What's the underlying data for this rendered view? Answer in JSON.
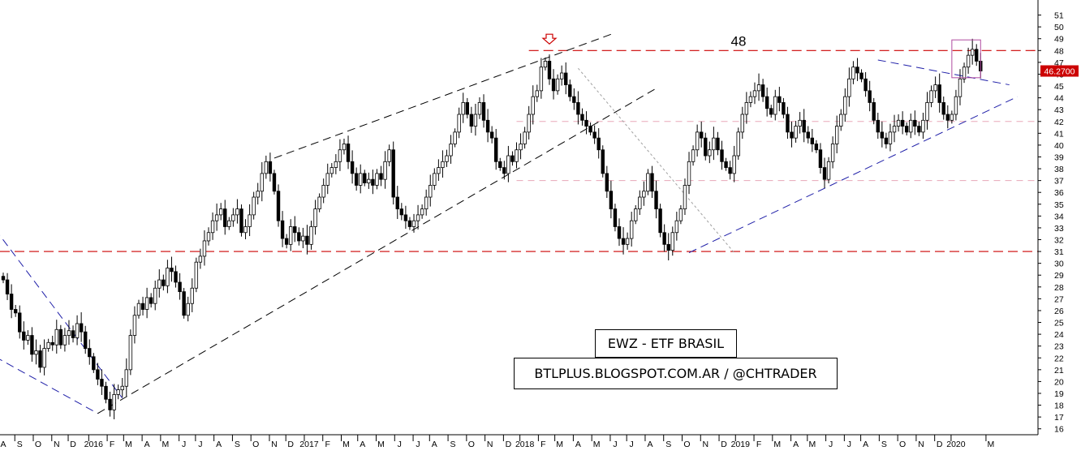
{
  "chart_data": {
    "type": "candlestick",
    "title": "EWZ - ETF BRASIL",
    "credit": "BTLPLUS.BLOGSPOT.COM.AR / @CHTRADER",
    "annotation_level_label": "48",
    "last_price_label": "46.2700",
    "colors": {
      "up_body": "#ffffff",
      "down_body": "#000000",
      "resistance": "#cc0000",
      "channel": "#000000",
      "trend_blue": "#1f1fa8",
      "pink_line": "#e8a8b8",
      "highlight_box": "#b04aa0",
      "price_tag": "#cc0000"
    },
    "ylim": [
      15.5,
      52
    ],
    "y_ticks": [
      16,
      17,
      18,
      19,
      20,
      21,
      22,
      23,
      24,
      25,
      26,
      27,
      28,
      29,
      30,
      31,
      32,
      33,
      34,
      35,
      36,
      37,
      38,
      39,
      40,
      41,
      42,
      43,
      44,
      45,
      46,
      47,
      48,
      49,
      50,
      51
    ],
    "x_ticks": [
      {
        "label": "A",
        "i": 0
      },
      {
        "label": "S",
        "i": 4
      },
      {
        "label": "O",
        "i": 8.5
      },
      {
        "label": "N",
        "i": 13
      },
      {
        "label": "D",
        "i": 17
      },
      {
        "label": "2016",
        "i": 22
      },
      {
        "label": "F",
        "i": 26.5
      },
      {
        "label": "M",
        "i": 30.5
      },
      {
        "label": "A",
        "i": 35
      },
      {
        "label": "M",
        "i": 39.5
      },
      {
        "label": "J",
        "i": 44
      },
      {
        "label": "J",
        "i": 48
      },
      {
        "label": "A",
        "i": 52.5
      },
      {
        "label": "S",
        "i": 57
      },
      {
        "label": "O",
        "i": 61.5
      },
      {
        "label": "N",
        "i": 66
      },
      {
        "label": "D",
        "i": 70
      },
      {
        "label": "2017",
        "i": 74.5
      },
      {
        "label": "F",
        "i": 79
      },
      {
        "label": "M",
        "i": 83.5
      },
      {
        "label": "A",
        "i": 87.5
      },
      {
        "label": "M",
        "i": 92
      },
      {
        "label": "J",
        "i": 96.5
      },
      {
        "label": "J",
        "i": 101
      },
      {
        "label": "A",
        "i": 105
      },
      {
        "label": "S",
        "i": 109.5
      },
      {
        "label": "O",
        "i": 114
      },
      {
        "label": "N",
        "i": 118.5
      },
      {
        "label": "D",
        "i": 123
      },
      {
        "label": "2018",
        "i": 127
      },
      {
        "label": "F",
        "i": 131.5
      },
      {
        "label": "M",
        "i": 135.5
      },
      {
        "label": "A",
        "i": 140
      },
      {
        "label": "M",
        "i": 144.5
      },
      {
        "label": "J",
        "i": 149
      },
      {
        "label": "J",
        "i": 153
      },
      {
        "label": "A",
        "i": 157.5
      },
      {
        "label": "S",
        "i": 162
      },
      {
        "label": "O",
        "i": 166.5
      },
      {
        "label": "N",
        "i": 171
      },
      {
        "label": "D",
        "i": 175.5
      },
      {
        "label": "2019",
        "i": 179.5
      },
      {
        "label": "F",
        "i": 184
      },
      {
        "label": "M",
        "i": 188.5
      },
      {
        "label": "A",
        "i": 193
      },
      {
        "label": "M",
        "i": 197
      },
      {
        "label": "J",
        "i": 201.5
      },
      {
        "label": "J",
        "i": 206
      },
      {
        "label": "A",
        "i": 210
      },
      {
        "label": "S",
        "i": 214.5
      },
      {
        "label": "O",
        "i": 219
      },
      {
        "label": "N",
        "i": 223.5
      },
      {
        "label": "D",
        "i": 228
      },
      {
        "label": "2020",
        "i": 232
      },
      {
        "label": "M",
        "i": 240.5
      }
    ],
    "closes": [
      28.6,
      27.4,
      26.1,
      25.8,
      24.2,
      23.5,
      23.9,
      22.3,
      22.6,
      21.2,
      22.8,
      23.3,
      23.1,
      24.4,
      23.1,
      23.9,
      24.3,
      23.7,
      24.9,
      24.2,
      22.8,
      22.1,
      21.0,
      20.2,
      19.6,
      18.5,
      17.6,
      18.9,
      19.3,
      19.6,
      21.0,
      23.9,
      25.6,
      26.6,
      26.1,
      27.1,
      26.6,
      27.9,
      28.6,
      28.1,
      29.6,
      29.3,
      28.4,
      27.6,
      25.6,
      26.6,
      27.9,
      30.1,
      30.6,
      31.9,
      32.6,
      33.6,
      34.1,
      34.6,
      33.1,
      33.6,
      34.1,
      34.6,
      32.6,
      33.1,
      34.1,
      35.6,
      36.1,
      37.6,
      38.6,
      37.6,
      36.1,
      33.6,
      32.1,
      31.6,
      33.1,
      32.6,
      31.9,
      32.3,
      31.6,
      33.1,
      34.6,
      35.6,
      36.6,
      37.6,
      38.1,
      38.6,
      39.6,
      40.1,
      38.6,
      37.6,
      36.6,
      37.6,
      36.8,
      37.1,
      36.6,
      37.6,
      37.1,
      38.6,
      39.6,
      35.6,
      34.6,
      34.1,
      33.6,
      33.1,
      33.6,
      34.1,
      34.6,
      35.6,
      36.6,
      37.6,
      38.1,
      38.6,
      39.1,
      40.1,
      41.1,
      42.6,
      43.6,
      42.6,
      41.6,
      42.6,
      43.6,
      42.1,
      41.1,
      40.6,
      38.6,
      38.1,
      37.6,
      39.1,
      38.6,
      39.6,
      40.1,
      41.1,
      42.6,
      44.1,
      44.6,
      46.6,
      47.1,
      45.6,
      44.6,
      45.6,
      46.1,
      45.1,
      44.1,
      43.6,
      42.6,
      42.1,
      41.6,
      41.1,
      40.6,
      39.6,
      37.6,
      36.1,
      34.6,
      33.1,
      32.1,
      31.6,
      32.1,
      33.6,
      34.6,
      35.6,
      36.1,
      37.6,
      36.1,
      34.6,
      32.6,
      31.6,
      31.1,
      32.6,
      33.6,
      34.6,
      36.6,
      38.6,
      39.6,
      41.1,
      40.6,
      39.1,
      39.6,
      40.6,
      39.6,
      38.6,
      38.1,
      37.6,
      39.1,
      41.1,
      42.6,
      43.6,
      44.1,
      44.6,
      45.1,
      44.1,
      43.1,
      42.6,
      44.1,
      43.6,
      42.6,
      41.1,
      40.6,
      41.6,
      42.1,
      41.1,
      40.6,
      40.1,
      39.6,
      38.1,
      37.1,
      38.6,
      40.1,
      41.6,
      42.6,
      44.1,
      45.6,
      46.6,
      46.1,
      45.6,
      44.6,
      43.6,
      42.1,
      41.1,
      40.6,
      40.1,
      41.1,
      41.6,
      42.1,
      41.6,
      41.1,
      42.1,
      41.6,
      41.1,
      42.1,
      43.6,
      44.6,
      45.1,
      43.6,
      42.6,
      42.1,
      42.6,
      44.1,
      45.6,
      46.6,
      47.6,
      48.1,
      47.1,
      46.27
    ],
    "series_start": 28.9,
    "annotations": {
      "resistance_48": 48,
      "support_31": 31,
      "pink_levels": [
        42,
        37
      ],
      "highlight_box": {
        "i0": 231,
        "i1": 238,
        "p_top": 48.9,
        "p_bot": 45.7
      },
      "arrow_marker": {
        "i": 133,
        "p": 48.9
      },
      "lines": [
        {
          "type": "blue",
          "i0": -2,
          "p0": 32.9,
          "i1": 29,
          "p1": 18.6
        },
        {
          "type": "blue",
          "i0": -2,
          "p0": 22.1,
          "i1": 23,
          "p1": 17.3
        },
        {
          "type": "black",
          "i0": 23,
          "p0": 17.3,
          "i1": 159,
          "p1": 44.8
        },
        {
          "type": "black",
          "i0": 66,
          "p0": 38.9,
          "i1": 149,
          "p1": 49.5
        },
        {
          "type": "gray",
          "i0": 140,
          "p0": 46.5,
          "i1": 178,
          "p1": 30.9
        },
        {
          "type": "blue",
          "i0": 167,
          "p0": 30.9,
          "i1": 247,
          "p1": 44.1
        },
        {
          "type": "blue",
          "i0": 213,
          "p0": 47.2,
          "i1": 245,
          "p1": 45.1
        }
      ]
    }
  }
}
